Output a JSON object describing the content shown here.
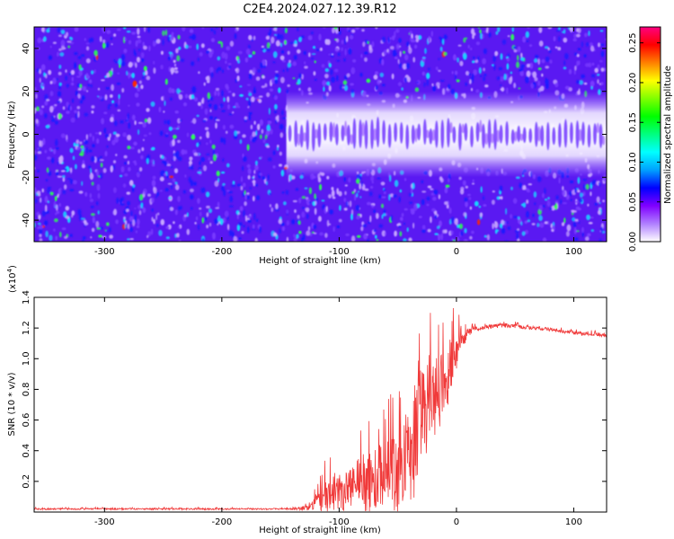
{
  "figure": {
    "title": "C2E4.2024.027.12.39.R12"
  },
  "chart_data": [
    {
      "type": "heatmap",
      "xlabel": "Height of straight line (km)",
      "ylabel": "Frequency (Hz)",
      "xlim": [
        -360,
        128
      ],
      "ylim": [
        -50,
        50
      ],
      "x_ticks": [
        -300,
        -200,
        -100,
        0,
        100
      ],
      "y_ticks": [
        -40,
        -20,
        0,
        20,
        40
      ],
      "colorbar": {
        "label": "Normalized spectral amplitude",
        "range": [
          0,
          0.27
        ],
        "ticks": [
          "0.00",
          "0.05",
          "0.10",
          "0.15",
          "0.20",
          "0.25"
        ],
        "colormap": [
          "#ffffff",
          "#b080ff",
          "#8000ff",
          "#0000ff",
          "#00a0ff",
          "#00ffff",
          "#00ff80",
          "#00ff00",
          "#80ff00",
          "#ffff00",
          "#ff8000",
          "#ff0000",
          "#ff0080"
        ]
      },
      "signal_band": {
        "x_start": -145,
        "x_end": 128,
        "freq_center": 0,
        "half_width": 15,
        "stripe_period": 5
      },
      "background_colors": {
        "base": "#5a19f2",
        "light": "#c8a8ff",
        "mid": "#7a3cff",
        "blue": "#1a1aff",
        "cyan": "#19d8ff",
        "green": "#2aff55",
        "hot": "#ff2a00"
      }
    },
    {
      "type": "line",
      "xlabel": "Height of straight line (km)",
      "ylabel": "SNR (10 * v/v)",
      "y_multiplier": "(x10",
      "y_multiplier_exp": "4",
      "y_multiplier_close": ")",
      "xlim": [
        -360,
        128
      ],
      "ylim": [
        0,
        1.4
      ],
      "x_ticks": [
        -300,
        -200,
        -100,
        0,
        100
      ],
      "y_ticks": [
        "0.2",
        "0.4",
        "0.6",
        "0.8",
        "1.0",
        "1.2",
        "1.4"
      ],
      "color": "#f03a3a",
      "series": [
        {
          "x": [
            -360,
            -300,
            -240,
            -180,
            -140,
            -125,
            -120,
            -110,
            -100,
            -90,
            -80,
            -70,
            -60,
            -50,
            -40,
            -35,
            -30,
            -25,
            -20,
            -15,
            -10,
            -5,
            0,
            5,
            10,
            20,
            30,
            40,
            50,
            60,
            70,
            80,
            90,
            100,
            110,
            120,
            128
          ],
          "y": [
            0.02,
            0.02,
            0.02,
            0.02,
            0.02,
            0.03,
            0.06,
            0.12,
            0.15,
            0.16,
            0.18,
            0.2,
            0.24,
            0.28,
            0.35,
            0.45,
            0.6,
            0.7,
            0.75,
            0.8,
            0.88,
            0.95,
            1.05,
            1.12,
            1.17,
            1.2,
            1.21,
            1.22,
            1.21,
            1.2,
            1.2,
            1.19,
            1.18,
            1.17,
            1.16,
            1.16,
            1.15
          ],
          "noise": [
            0.005,
            0.005,
            0.005,
            0.005,
            0.005,
            0.02,
            0.05,
            0.12,
            0.14,
            0.16,
            0.18,
            0.2,
            0.24,
            0.28,
            0.3,
            0.35,
            0.35,
            0.32,
            0.3,
            0.28,
            0.25,
            0.2,
            0.12,
            0.06,
            0.03,
            0.015,
            0.015,
            0.015,
            0.015,
            0.012,
            0.012,
            0.012,
            0.012,
            0.012,
            0.012,
            0.012,
            0.012
          ]
        }
      ]
    }
  ]
}
